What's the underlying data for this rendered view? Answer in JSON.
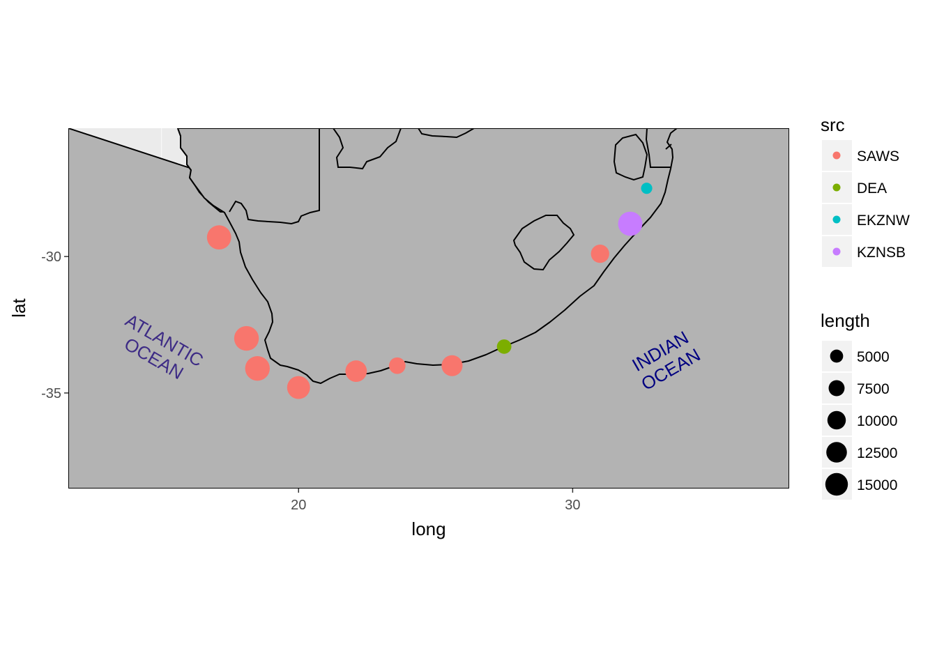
{
  "chart_data": {
    "type": "scatter",
    "base_layer": "coastline and border polygons of southern Africa",
    "xlabel": "long",
    "ylabel": "lat",
    "xlim": [
      11.6,
      37.9
    ],
    "ylim": [
      -38.5,
      -25.3
    ],
    "x_ticks": [
      20,
      30
    ],
    "x_tick_labels": [
      "20",
      "30"
    ],
    "y_ticks": [
      -30,
      -35
    ],
    "y_tick_labels": [
      "-30",
      "-35"
    ],
    "x_minor_ticks": [
      15,
      25,
      35
    ],
    "y_minor_ticks": [
      -27.5,
      -32.5,
      -37.5
    ],
    "grid": true,
    "panel_background": "#ebebeb",
    "land_fill": "#b3b3b3",
    "outline_color": "#000000",
    "points": [
      {
        "long": 17.1,
        "lat": -29.3,
        "src": "SAWS",
        "length": 14000
      },
      {
        "long": 18.1,
        "lat": -33.0,
        "src": "SAWS",
        "length": 14500
      },
      {
        "long": 18.5,
        "lat": -34.1,
        "src": "SAWS",
        "length": 14500
      },
      {
        "long": 20.0,
        "lat": -34.8,
        "src": "SAWS",
        "length": 12500
      },
      {
        "long": 22.1,
        "lat": -34.2,
        "src": "SAWS",
        "length": 11000
      },
      {
        "long": 23.6,
        "lat": -34.0,
        "src": "SAWS",
        "length": 6500
      },
      {
        "long": 25.6,
        "lat": -34.0,
        "src": "SAWS",
        "length": 10500
      },
      {
        "long": 27.5,
        "lat": -33.3,
        "src": "DEA",
        "length": 5000
      },
      {
        "long": 31.0,
        "lat": -29.9,
        "src": "SAWS",
        "length": 8000
      },
      {
        "long": 32.1,
        "lat": -28.8,
        "src": "KZNSB",
        "length": 14000
      },
      {
        "long": 32.7,
        "lat": -27.5,
        "src": "EKZNW",
        "length": 3000
      }
    ],
    "annotations": [
      {
        "text": "ATLANTIC\nOCEAN",
        "long": 14.8,
        "lat": -33.6,
        "angle": -30,
        "color": "#3d2b85"
      },
      {
        "text": "INDIAN\nOCEAN",
        "long": 33.5,
        "lat": -34.0,
        "angle": 30,
        "color": "#000080"
      }
    ],
    "legend_position": "right"
  },
  "legend": {
    "color": {
      "title": "src",
      "items": [
        {
          "label": "SAWS",
          "color": "#f8766d"
        },
        {
          "label": "DEA",
          "color": "#7cae00"
        },
        {
          "label": "EKZNW",
          "color": "#00bfc4"
        },
        {
          "label": "KZNSB",
          "color": "#c77cff"
        }
      ]
    },
    "size": {
      "title": "length",
      "items": [
        {
          "label": "5000",
          "value": 5000
        },
        {
          "label": "7500",
          "value": 7500
        },
        {
          "label": "10000",
          "value": 10000
        },
        {
          "label": "12500",
          "value": 12500
        },
        {
          "label": "15000",
          "value": 15000
        }
      ]
    }
  }
}
